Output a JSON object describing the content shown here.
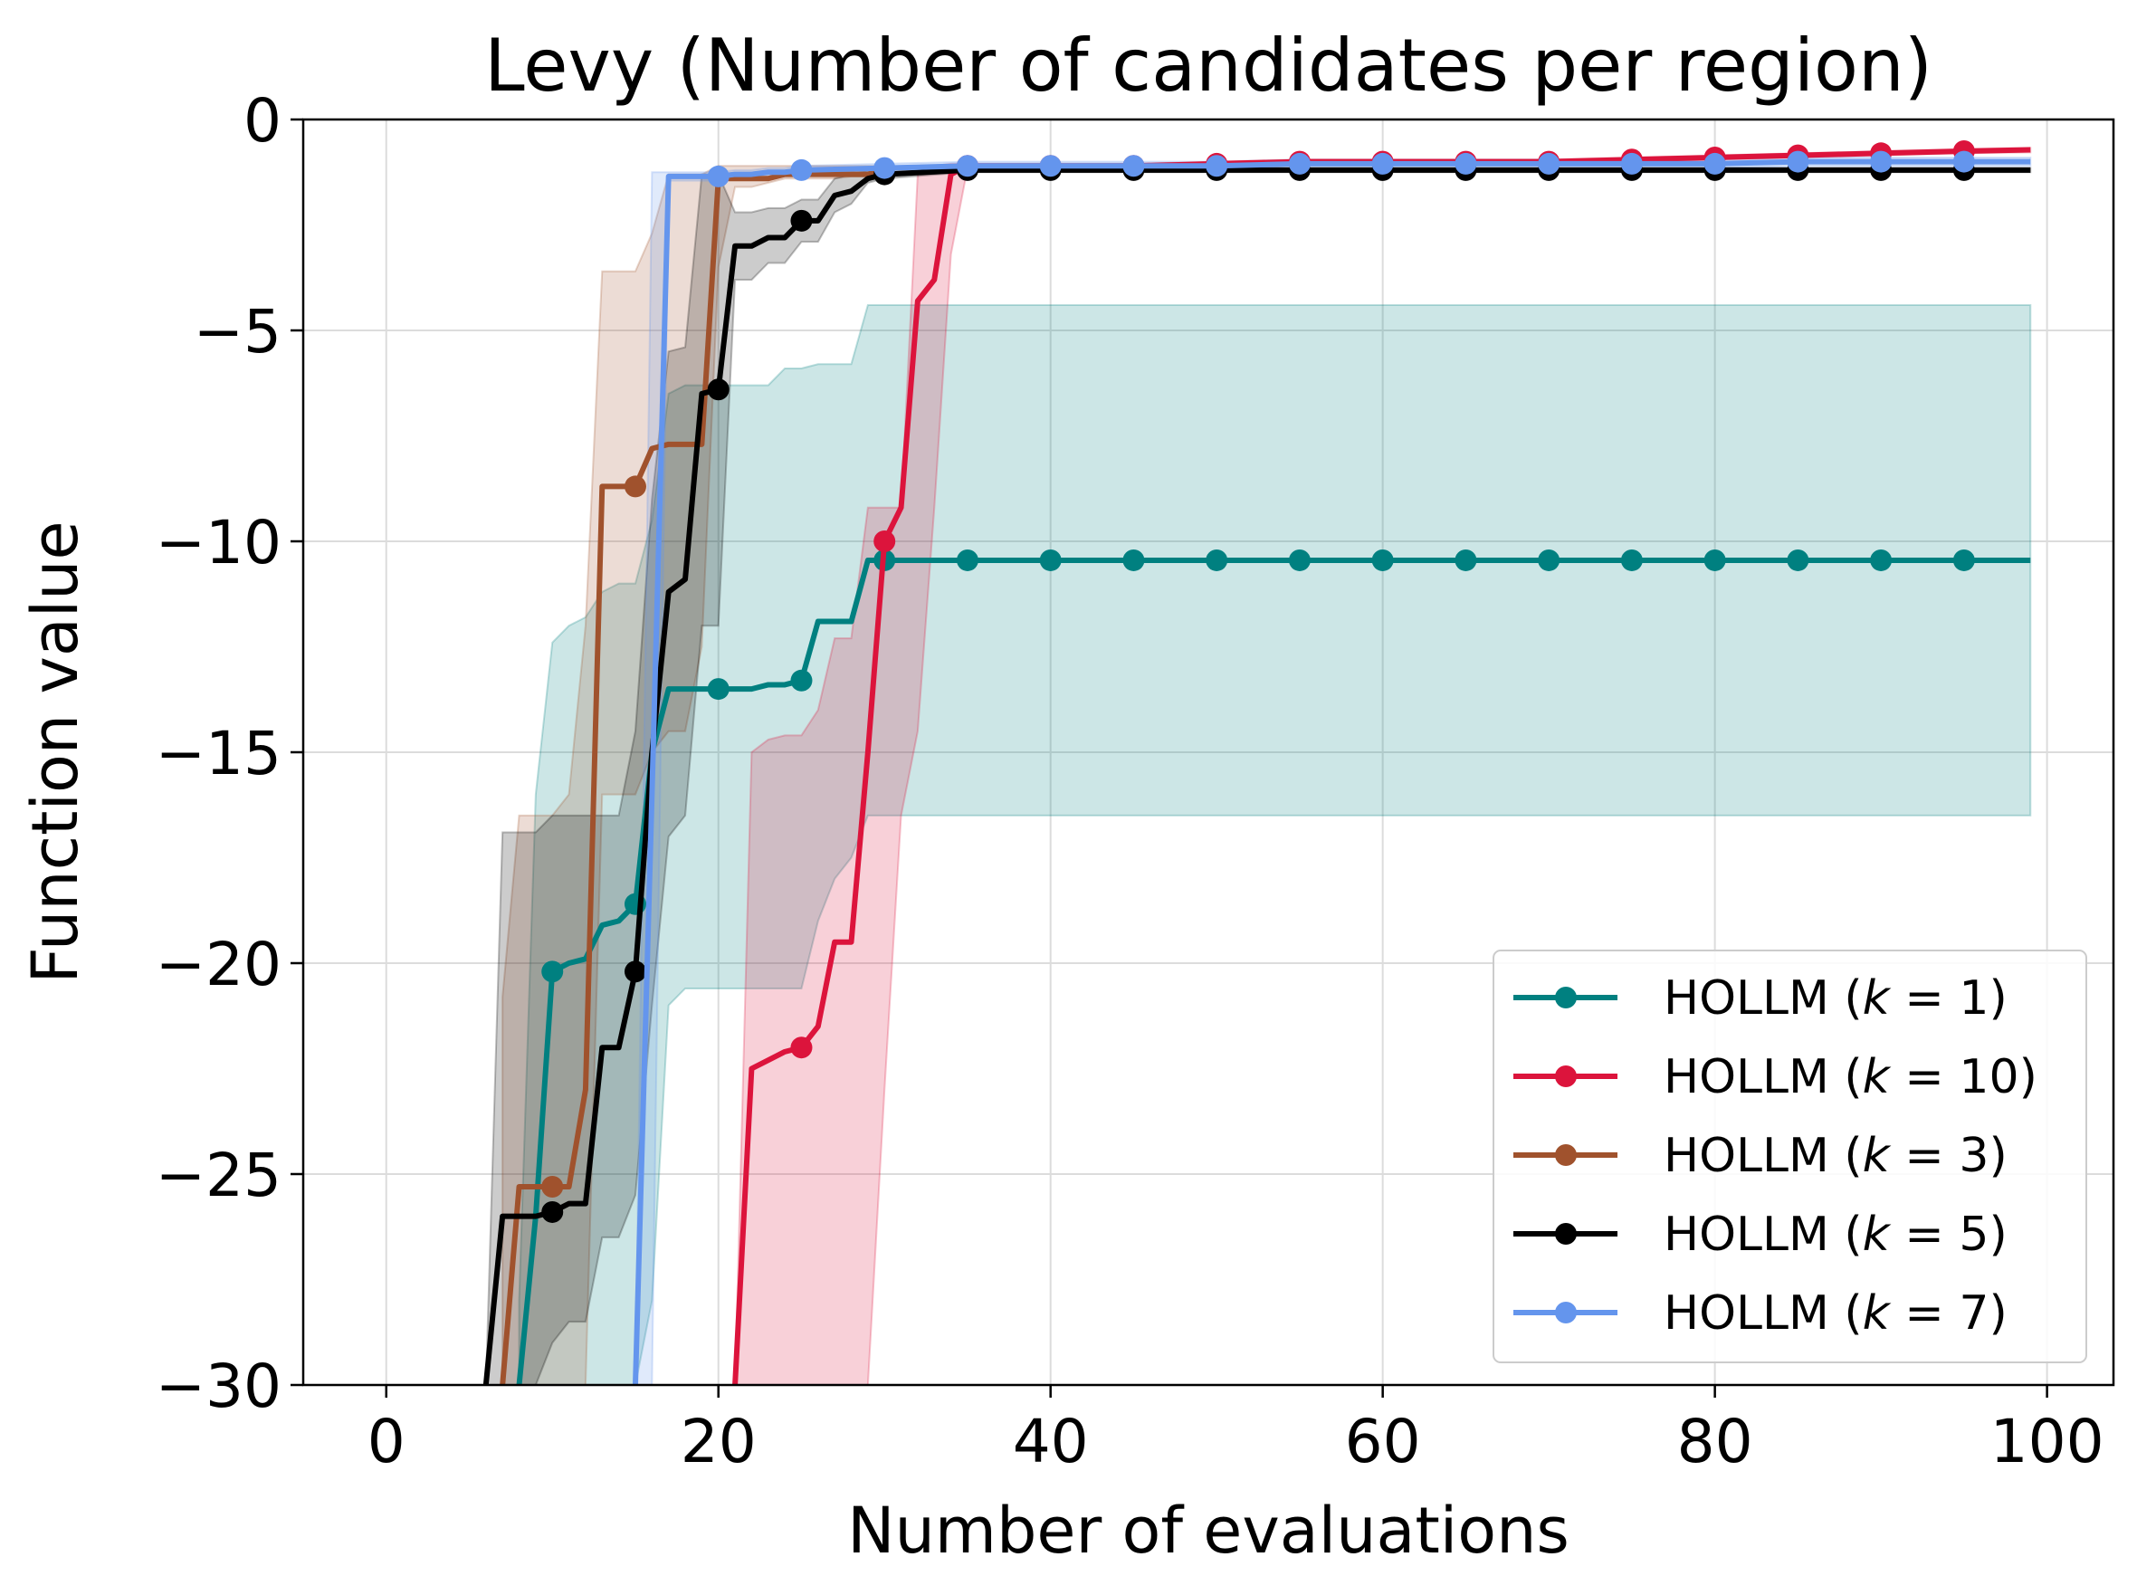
{
  "chart_data": {
    "type": "line",
    "title": "Levy (Number of candidates per region)",
    "xlabel": "Number of evaluations",
    "ylabel": "Function value",
    "xlim": [
      -5,
      104
    ],
    "ylim": [
      -30,
      0
    ],
    "xticks": [
      0,
      20,
      40,
      60,
      80,
      100
    ],
    "yticks": [
      0,
      -5,
      -10,
      -15,
      -20,
      -25,
      -30
    ],
    "xtick_labels": [
      "0",
      "20",
      "40",
      "60",
      "80",
      "100"
    ],
    "ytick_labels": [
      "0",
      "−5",
      "−10",
      "−15",
      "−20",
      "−25",
      "−30"
    ],
    "grid": true,
    "legend_position": "lower-right",
    "series": [
      {
        "name": "HOLLM (k = 1)",
        "legend_prefix": "HOLLM (",
        "legend_var": "k",
        "legend_suffix": " = 1)",
        "color": "#008080",
        "x": [
          8,
          9,
          10,
          11,
          12,
          13,
          14,
          15,
          16,
          17,
          18,
          19,
          20,
          21,
          22,
          23,
          24,
          25,
          26,
          27,
          28,
          29,
          30,
          35,
          40,
          45,
          50,
          55,
          60,
          65,
          70,
          75,
          80,
          85,
          90,
          95,
          99
        ],
        "y": [
          -30,
          -26,
          -20.2,
          -20,
          -19.9,
          -19.1,
          -19,
          -18.6,
          -15,
          -13.5,
          -13.5,
          -13.5,
          -13.5,
          -13.5,
          -13.5,
          -13.4,
          -13.4,
          -13.3,
          -11.9,
          -11.9,
          -11.9,
          -10.45,
          -10.45,
          -10.45,
          -10.45,
          -10.45,
          -10.45,
          -10.45,
          -10.45,
          -10.45,
          -10.45,
          -10.45,
          -10.45,
          -10.45,
          -10.45,
          -10.45,
          -10.45
        ],
        "lower": [
          -30,
          -30,
          -30,
          -30,
          -30,
          -30,
          -30,
          -30,
          -28,
          -21,
          -20.6,
          -20.6,
          -20.6,
          -20.6,
          -20.6,
          -20.6,
          -20.6,
          -20.6,
          -19,
          -18,
          -17.5,
          -16.5,
          -16.5,
          -16.5,
          -16.5,
          -16.5,
          -16.5,
          -16.5,
          -16.5,
          -16.5,
          -16.5,
          -16.5,
          -16.5,
          -16.5,
          -16.5,
          -16.5,
          -16.5
        ],
        "upper": [
          -28,
          -16,
          -12.4,
          -12,
          -11.8,
          -11.2,
          -11,
          -11,
          -9.5,
          -6.5,
          -6.3,
          -6.3,
          -6.3,
          -6.3,
          -6.3,
          -6.3,
          -5.9,
          -5.9,
          -5.8,
          -5.8,
          -5.8,
          -4.4,
          -4.4,
          -4.4,
          -4.4,
          -4.4,
          -4.4,
          -4.4,
          -4.4,
          -4.4,
          -4.4,
          -4.4,
          -4.4,
          -4.4,
          -4.4,
          -4.4,
          -4.4
        ],
        "marker_x": [
          10,
          15,
          20,
          25,
          30,
          35,
          40,
          45,
          50,
          55,
          60,
          65,
          70,
          75,
          80,
          85,
          90,
          95
        ]
      },
      {
        "name": "HOLLM (k = 10)",
        "legend_prefix": "HOLLM (",
        "legend_var": "k",
        "legend_suffix": " = 10)",
        "color": "#dc143c",
        "x": [
          21,
          22,
          23,
          24,
          25,
          26,
          27,
          28,
          29,
          30,
          31,
          32,
          33,
          34,
          35,
          40,
          45,
          50,
          55,
          60,
          65,
          70,
          75,
          80,
          85,
          90,
          95,
          99
        ],
        "y": [
          -30,
          -22.5,
          -22.3,
          -22.1,
          -22,
          -21.5,
          -19.5,
          -19.5,
          -15,
          -10,
          -9.2,
          -4.3,
          -3.8,
          -1.3,
          -1.1,
          -1.1,
          -1.1,
          -1.05,
          -1.0,
          -1.0,
          -1.0,
          -1.0,
          -0.95,
          -0.9,
          -0.85,
          -0.8,
          -0.75,
          -0.72
        ],
        "lower": [
          -30,
          -30,
          -30,
          -30,
          -30,
          -30,
          -30,
          -30,
          -30,
          -23,
          -16.5,
          -14.5,
          -9.2,
          -3.2,
          -1.15,
          -1.15,
          -1.15,
          -1.1,
          -1.05,
          -1.05,
          -1.05,
          -1.05,
          -1.0,
          -0.95,
          -0.9,
          -0.85,
          -0.8,
          -0.78
        ],
        "upper": [
          -30,
          -15,
          -14.7,
          -14.6,
          -14.6,
          -14,
          -12.3,
          -12.3,
          -9.2,
          -9.2,
          -9.2,
          -1.3,
          -1.1,
          -1.05,
          -1.05,
          -1.05,
          -1.05,
          -1.0,
          -0.95,
          -0.95,
          -0.95,
          -0.95,
          -0.9,
          -0.85,
          -0.8,
          -0.75,
          -0.7,
          -0.67
        ],
        "marker_x": [
          25,
          30,
          35,
          40,
          45,
          50,
          55,
          60,
          65,
          70,
          75,
          80,
          85,
          90,
          95
        ]
      },
      {
        "name": "HOLLM (k = 3)",
        "legend_prefix": "HOLLM (",
        "legend_var": "k",
        "legend_suffix": " = 3)",
        "color": "#a0522d",
        "x": [
          7,
          8,
          9,
          10,
          11,
          12,
          13,
          14,
          15,
          16,
          17,
          18,
          19,
          20,
          21,
          22,
          23,
          24,
          25,
          26,
          27,
          28,
          29,
          30
        ],
        "y": [
          -30,
          -25.3,
          -25.3,
          -25.3,
          -25.3,
          -23,
          -8.7,
          -8.7,
          -8.7,
          -7.8,
          -7.7,
          -7.7,
          -7.7,
          -1.4,
          -1.4,
          -1.4,
          -1.4,
          -1.3,
          -1.3,
          -1.3,
          -1.3,
          -1.3,
          -1.3,
          -1.2
        ],
        "lower": [
          -30,
          -30,
          -30,
          -30,
          -30,
          -30,
          -16,
          -16,
          -16,
          -15,
          -14.5,
          -14.5,
          -12.5,
          -3.5,
          -1.6,
          -1.6,
          -1.5,
          -1.4,
          -1.4,
          -1.4,
          -1.4,
          -1.35,
          -1.35,
          -1.3
        ],
        "upper": [
          -20.8,
          -16.5,
          -16.5,
          -16.5,
          -16,
          -12,
          -3.6,
          -3.6,
          -3.6,
          -2.7,
          -1.3,
          -1.3,
          -1.3,
          -1.1,
          -1.1,
          -1.1,
          -1.1,
          -1.1,
          -1.1,
          -1.1,
          -1.1,
          -1.1,
          -1.1,
          -1.1
        ],
        "marker_x": [
          10,
          15
        ]
      },
      {
        "name": "HOLLM (k = 5)",
        "legend_prefix": "HOLLM (",
        "legend_var": "k",
        "legend_suffix": " = 5)",
        "color": "#000000",
        "x": [
          6,
          7,
          8,
          9,
          10,
          11,
          12,
          13,
          14,
          15,
          16,
          17,
          18,
          19,
          20,
          21,
          22,
          23,
          24,
          25,
          26,
          27,
          28,
          29,
          30,
          35,
          40,
          45,
          50,
          55,
          60,
          65,
          70,
          75,
          80,
          85,
          90,
          95,
          99
        ],
        "y": [
          -30,
          -26,
          -26,
          -26,
          -25.9,
          -25.7,
          -25.7,
          -22,
          -22,
          -20.2,
          -15,
          -11.2,
          -10.9,
          -6.5,
          -6.4,
          -3,
          -3,
          -2.8,
          -2.8,
          -2.4,
          -2.4,
          -1.8,
          -1.7,
          -1.4,
          -1.3,
          -1.2,
          -1.2,
          -1.2,
          -1.2,
          -1.2,
          -1.2,
          -1.2,
          -1.2,
          -1.2,
          -1.2,
          -1.2,
          -1.2,
          -1.2,
          -1.2
        ],
        "lower": [
          -30,
          -30,
          -30,
          -30,
          -29,
          -28.5,
          -28.5,
          -26.5,
          -26.5,
          -25.5,
          -21,
          -17,
          -16.5,
          -12,
          -12,
          -3.8,
          -3.8,
          -3.4,
          -3.4,
          -2.9,
          -2.9,
          -2.2,
          -2.0,
          -1.5,
          -1.4,
          -1.25,
          -1.25,
          -1.25,
          -1.25,
          -1.25,
          -1.25,
          -1.25,
          -1.25,
          -1.25,
          -1.25,
          -1.25,
          -1.25,
          -1.25,
          -1.25
        ],
        "upper": [
          -30,
          -16.9,
          -16.9,
          -16.9,
          -16.5,
          -16.5,
          -16.5,
          -16.5,
          -16.5,
          -14.5,
          -9,
          -5.5,
          -5.4,
          -1.3,
          -1.3,
          -2.2,
          -2.2,
          -2.1,
          -2.1,
          -1.9,
          -1.9,
          -1.4,
          -1.3,
          -1.2,
          -1.15,
          -1.15,
          -1.15,
          -1.15,
          -1.15,
          -1.15,
          -1.15,
          -1.15,
          -1.15,
          -1.15,
          -1.15,
          -1.15,
          -1.15,
          -1.15,
          -1.15
        ],
        "marker_x": [
          10,
          15,
          20,
          25,
          30,
          35,
          40,
          45,
          50,
          55,
          60,
          65,
          70,
          75,
          80,
          85,
          90,
          95
        ]
      },
      {
        "name": "HOLLM (k = 7)",
        "legend_prefix": "HOLLM (",
        "legend_var": "k",
        "legend_suffix": " = 7)",
        "color": "#6495ed",
        "x": [
          15,
          16,
          17,
          18,
          19,
          20,
          21,
          22,
          23,
          24,
          25,
          30,
          35,
          40,
          45,
          50,
          55,
          60,
          65,
          70,
          75,
          80,
          85,
          90,
          95,
          99
        ],
        "y": [
          -30,
          -16,
          -1.35,
          -1.35,
          -1.35,
          -1.35,
          -1.3,
          -1.3,
          -1.25,
          -1.25,
          -1.2,
          -1.15,
          -1.1,
          -1.1,
          -1.1,
          -1.1,
          -1.05,
          -1.05,
          -1.05,
          -1.05,
          -1.05,
          -1.05,
          -1.0,
          -1.0,
          -1.0,
          -1.0
        ],
        "lower": [
          -30,
          -30,
          -1.45,
          -1.45,
          -1.45,
          -1.45,
          -1.4,
          -1.4,
          -1.35,
          -1.35,
          -1.3,
          -1.25,
          -1.2,
          -1.2,
          -1.2,
          -1.2,
          -1.15,
          -1.15,
          -1.15,
          -1.15,
          -1.15,
          -1.15,
          -1.1,
          -1.1,
          -1.1,
          -1.1
        ],
        "upper": [
          -30,
          -1.25,
          -1.25,
          -1.25,
          -1.25,
          -1.25,
          -1.2,
          -1.2,
          -1.15,
          -1.15,
          -1.1,
          -1.05,
          -1.0,
          -1.0,
          -1.0,
          -1.0,
          -0.95,
          -0.95,
          -0.95,
          -0.95,
          -0.95,
          -0.95,
          -0.9,
          -0.9,
          -0.9,
          -0.9
        ],
        "marker_x": [
          20,
          25,
          30,
          35,
          40,
          45,
          50,
          55,
          60,
          65,
          70,
          75,
          80,
          85,
          90,
          95
        ]
      }
    ]
  }
}
